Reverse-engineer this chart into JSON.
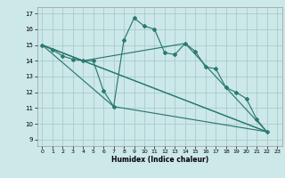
{
  "xlabel": "Humidex (Indice chaleur)",
  "bg_color": "#cce8e8",
  "grid_color": "#aacccc",
  "line_color": "#2a7a70",
  "xlim": [
    -0.5,
    23.5
  ],
  "ylim": [
    8.6,
    17.4
  ],
  "xticks": [
    0,
    1,
    2,
    3,
    4,
    5,
    6,
    7,
    8,
    9,
    10,
    11,
    12,
    13,
    14,
    15,
    16,
    17,
    18,
    19,
    20,
    21,
    22,
    23
  ],
  "yticks": [
    9,
    10,
    11,
    12,
    13,
    14,
    15,
    16,
    17
  ],
  "main_x": [
    0,
    1,
    2,
    3,
    4,
    5,
    6,
    7,
    8,
    9,
    10,
    11,
    12,
    13,
    14,
    15,
    16,
    17,
    18,
    19,
    20,
    21,
    22
  ],
  "main_y": [
    15.0,
    14.7,
    14.3,
    14.1,
    14.0,
    14.0,
    12.1,
    11.1,
    15.3,
    16.7,
    16.2,
    16.0,
    14.5,
    14.4,
    15.1,
    14.6,
    13.6,
    13.5,
    12.3,
    12.0,
    11.6,
    10.3,
    9.5
  ],
  "straight_lines": [
    {
      "x": [
        0,
        22
      ],
      "y": [
        15.0,
        9.5
      ]
    },
    {
      "x": [
        0,
        4,
        22
      ],
      "y": [
        15.0,
        14.0,
        9.5
      ]
    },
    {
      "x": [
        0,
        7,
        22
      ],
      "y": [
        15.0,
        11.1,
        9.5
      ]
    },
    {
      "x": [
        0,
        4,
        14,
        22
      ],
      "y": [
        15.0,
        14.0,
        15.1,
        9.5
      ]
    }
  ]
}
